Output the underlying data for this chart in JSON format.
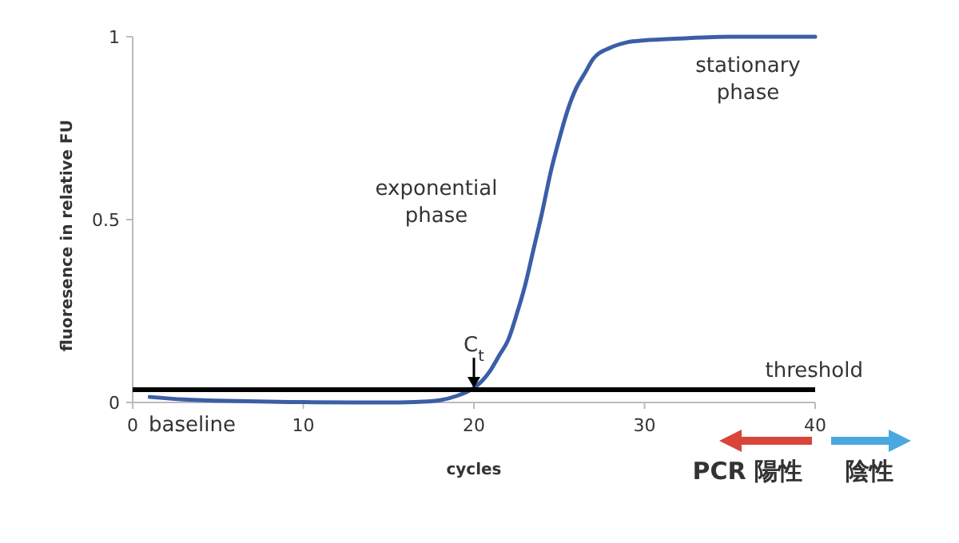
{
  "chart_data": {
    "type": "line",
    "xlabel": "cycles",
    "ylabel": "fluoresence in relative FU",
    "x": [
      1,
      3,
      5,
      8,
      10,
      13,
      15,
      17,
      18,
      19,
      20,
      20.5,
      21,
      21.5,
      22,
      22.5,
      23,
      23.5,
      24,
      24.5,
      25,
      25.5,
      26,
      26.5,
      27,
      28,
      29,
      30,
      32,
      35,
      38,
      40
    ],
    "series": [
      {
        "color": "#3b5ea8",
        "values": [
          0.015,
          0.008,
          0.005,
          0.002,
          0.001,
          0,
          0,
          0.002,
          0.006,
          0.018,
          0.04,
          0.06,
          0.09,
          0.13,
          0.17,
          0.24,
          0.32,
          0.42,
          0.52,
          0.63,
          0.72,
          0.8,
          0.86,
          0.9,
          0.94,
          0.97,
          0.985,
          0.99,
          0.995,
          1,
          1,
          1
        ]
      }
    ],
    "xlim": [
      0,
      40
    ],
    "xticks": [
      0,
      10,
      20,
      30,
      40
    ],
    "ylim": [
      0,
      1
    ],
    "yticks": [
      0,
      0.5,
      1
    ],
    "grid": false,
    "marker": "none",
    "line_style": "solid",
    "ref_lines": [
      {
        "axis": "y",
        "value": 0.035,
        "label": "threshold",
        "color": "#000000"
      }
    ],
    "annotations": [
      "stationary phase",
      "exponential phase",
      {
        "text": "C$_{t}$",
        "x": 20,
        "y": 0.035
      },
      "baseline",
      "PCR 陽性",
      "陰性"
    ]
  }
}
